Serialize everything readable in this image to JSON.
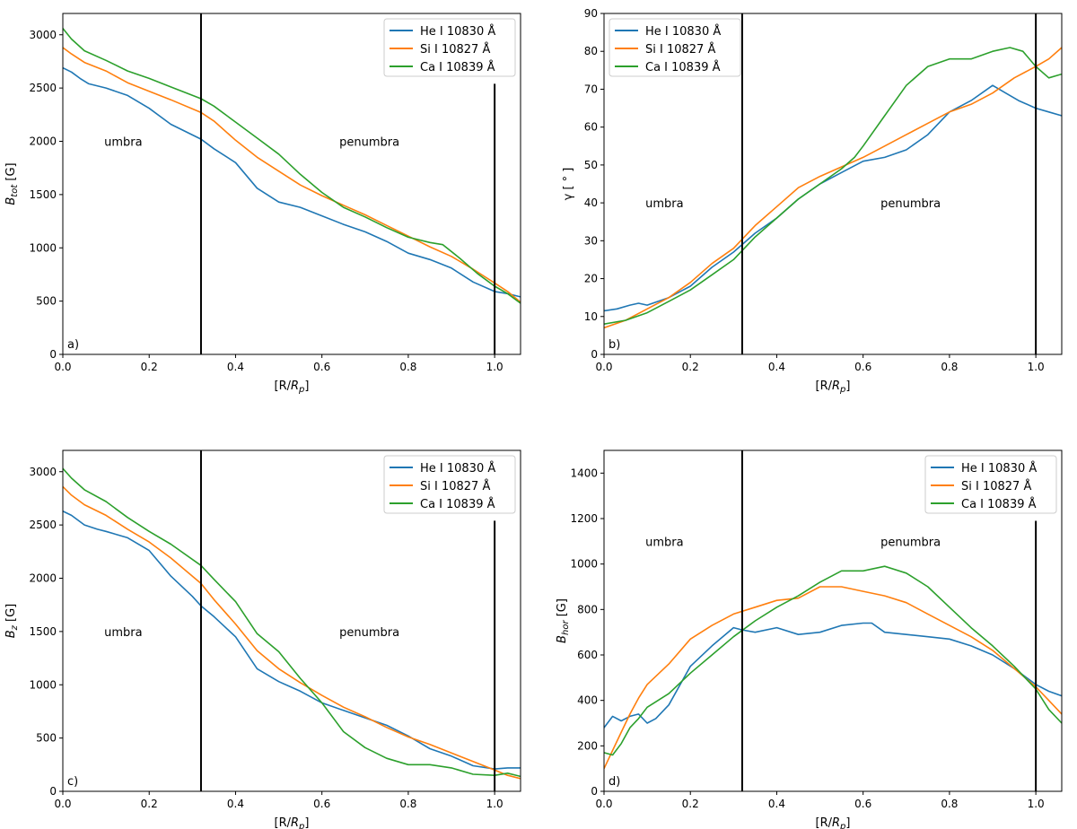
{
  "colors": {
    "He I 10830 Å": "#1f77b4",
    "Si I 10827 Å": "#ff7f0e",
    "Ca I 10839 Å": "#2ca02c",
    "axis": "#000000",
    "boundary": "#000000"
  },
  "chart_data": [
    {
      "type": "line",
      "panel_label": "a)",
      "xlabel": "[R/R_p]",
      "ylabel": "B_tot [G]",
      "xlim": [
        0,
        1.06
      ],
      "ylim": [
        0,
        3200
      ],
      "xticks": [
        0.0,
        0.2,
        0.4,
        0.6,
        0.8,
        1.0
      ],
      "xtick_labels": [
        "0.0",
        "0.2",
        "0.4",
        "0.6",
        "0.8",
        "1.0"
      ],
      "yticks": [
        0,
        500,
        1000,
        1500,
        2000,
        2500,
        3000
      ],
      "ytick_labels": [
        "0",
        "500",
        "1000",
        "1500",
        "2000",
        "2500",
        "3000"
      ],
      "legend": "top-right",
      "boundaries": [
        {
          "x": 0.32,
          "y_top": 3200
        },
        {
          "x": 1.0,
          "y_top": 2540
        }
      ],
      "annotations": [
        {
          "text": "umbra",
          "x": 0.14,
          "y": 2000
        },
        {
          "text": "penumbra",
          "x": 0.71,
          "y": 2000
        }
      ],
      "series": [
        {
          "name": "He I 10830 Å",
          "x": [
            0,
            0.02,
            0.04,
            0.06,
            0.1,
            0.15,
            0.2,
            0.25,
            0.32,
            0.35,
            0.4,
            0.45,
            0.5,
            0.55,
            0.6,
            0.65,
            0.7,
            0.75,
            0.8,
            0.85,
            0.9,
            0.95,
            1.0,
            1.03,
            1.06
          ],
          "y": [
            2690,
            2650,
            2590,
            2540,
            2500,
            2430,
            2310,
            2160,
            2020,
            1930,
            1800,
            1560,
            1430,
            1380,
            1300,
            1220,
            1150,
            1060,
            950,
            890,
            810,
            680,
            590,
            570,
            540
          ]
        },
        {
          "name": "Si I 10827 Å",
          "x": [
            0,
            0.02,
            0.05,
            0.1,
            0.15,
            0.2,
            0.25,
            0.32,
            0.35,
            0.4,
            0.45,
            0.5,
            0.55,
            0.6,
            0.65,
            0.7,
            0.75,
            0.8,
            0.85,
            0.9,
            0.95,
            1.0,
            1.03,
            1.06
          ],
          "y": [
            2880,
            2820,
            2740,
            2660,
            2550,
            2470,
            2390,
            2270,
            2190,
            2010,
            1850,
            1720,
            1590,
            1490,
            1400,
            1310,
            1210,
            1110,
            1010,
            920,
            800,
            670,
            590,
            490
          ]
        },
        {
          "name": "Ca I 10839 Å",
          "x": [
            0,
            0.02,
            0.05,
            0.1,
            0.15,
            0.2,
            0.25,
            0.32,
            0.35,
            0.4,
            0.45,
            0.5,
            0.55,
            0.6,
            0.65,
            0.7,
            0.75,
            0.8,
            0.85,
            0.88,
            0.92,
            0.96,
            1.0,
            1.03,
            1.06
          ],
          "y": [
            3060,
            2960,
            2850,
            2760,
            2660,
            2590,
            2510,
            2400,
            2330,
            2180,
            2030,
            1880,
            1690,
            1520,
            1380,
            1290,
            1190,
            1100,
            1050,
            1030,
            900,
            760,
            640,
            570,
            480
          ]
        }
      ]
    },
    {
      "type": "line",
      "panel_label": "b)",
      "xlabel": "[R/R_p]",
      "ylabel": "γ [ ° ]",
      "xlim": [
        0,
        1.06
      ],
      "ylim": [
        0,
        90
      ],
      "xticks": [
        0.0,
        0.2,
        0.4,
        0.6,
        0.8,
        1.0
      ],
      "xtick_labels": [
        "0.0",
        "0.2",
        "0.4",
        "0.6",
        "0.8",
        "1.0"
      ],
      "yticks": [
        0,
        10,
        20,
        30,
        40,
        50,
        60,
        70,
        80,
        90
      ],
      "ytick_labels": [
        "0",
        "10",
        "20",
        "30",
        "40",
        "50",
        "60",
        "70",
        "80",
        "90"
      ],
      "legend": "top-left",
      "boundaries": [
        {
          "x": 0.32,
          "y_top": 90
        },
        {
          "x": 1.0,
          "y_top": 90
        }
      ],
      "annotations": [
        {
          "text": "umbra",
          "x": 0.14,
          "y": 40
        },
        {
          "text": "penumbra",
          "x": 0.71,
          "y": 40
        }
      ],
      "series": [
        {
          "name": "He I 10830 Å",
          "x": [
            0,
            0.03,
            0.06,
            0.08,
            0.1,
            0.15,
            0.2,
            0.25,
            0.3,
            0.35,
            0.4,
            0.45,
            0.5,
            0.55,
            0.6,
            0.65,
            0.7,
            0.75,
            0.8,
            0.85,
            0.9,
            0.93,
            0.96,
            1.0,
            1.03,
            1.06
          ],
          "y": [
            11.5,
            12,
            13,
            13.5,
            13,
            15,
            18,
            23,
            27,
            32,
            36,
            41,
            45,
            48,
            51,
            52,
            54,
            58,
            64,
            67,
            71,
            69,
            67,
            65,
            64,
            63
          ]
        },
        {
          "name": "Si I 10827 Å",
          "x": [
            0,
            0.05,
            0.1,
            0.15,
            0.2,
            0.25,
            0.3,
            0.35,
            0.4,
            0.45,
            0.5,
            0.55,
            0.6,
            0.65,
            0.7,
            0.75,
            0.8,
            0.85,
            0.9,
            0.95,
            1.0,
            1.03,
            1.06
          ],
          "y": [
            7,
            9,
            12,
            15,
            19,
            24,
            28,
            34,
            39,
            44,
            47,
            49.5,
            52,
            55,
            58,
            61,
            64,
            66,
            69,
            73,
            76,
            78,
            81
          ]
        },
        {
          "name": "Ca I 10839 Å",
          "x": [
            0,
            0.05,
            0.1,
            0.15,
            0.2,
            0.25,
            0.3,
            0.35,
            0.4,
            0.45,
            0.5,
            0.55,
            0.58,
            0.6,
            0.65,
            0.7,
            0.75,
            0.8,
            0.85,
            0.9,
            0.94,
            0.97,
            1.0,
            1.03,
            1.06
          ],
          "y": [
            8,
            9,
            11,
            14,
            17,
            21,
            25,
            31,
            36,
            41,
            45,
            49,
            52,
            55,
            63,
            71,
            76,
            78,
            78,
            80,
            81,
            80,
            76,
            73,
            74
          ]
        }
      ]
    },
    {
      "type": "line",
      "panel_label": "c)",
      "xlabel": "[R/R_p]",
      "ylabel": "B_z [G]",
      "xlim": [
        0,
        1.06
      ],
      "ylim": [
        0,
        3200
      ],
      "xticks": [
        0.0,
        0.2,
        0.4,
        0.6,
        0.8,
        1.0
      ],
      "xtick_labels": [
        "0.0",
        "0.2",
        "0.4",
        "0.6",
        "0.8",
        "1.0"
      ],
      "yticks": [
        0,
        500,
        1000,
        1500,
        2000,
        2500,
        3000
      ],
      "ytick_labels": [
        "0",
        "500",
        "1000",
        "1500",
        "2000",
        "2500",
        "3000"
      ],
      "legend": "top-right",
      "boundaries": [
        {
          "x": 0.32,
          "y_top": 3200
        },
        {
          "x": 1.0,
          "y_top": 2540
        }
      ],
      "annotations": [
        {
          "text": "umbra",
          "x": 0.14,
          "y": 1500
        },
        {
          "text": "penumbra",
          "x": 0.71,
          "y": 1500
        }
      ],
      "series": [
        {
          "name": "He I 10830 Å",
          "x": [
            0,
            0.02,
            0.05,
            0.08,
            0.1,
            0.15,
            0.2,
            0.25,
            0.3,
            0.32,
            0.35,
            0.4,
            0.45,
            0.5,
            0.55,
            0.6,
            0.65,
            0.7,
            0.75,
            0.8,
            0.85,
            0.9,
            0.95,
            1.0,
            1.03,
            1.06
          ],
          "y": [
            2630,
            2590,
            2500,
            2460,
            2440,
            2380,
            2260,
            2020,
            1830,
            1740,
            1640,
            1450,
            1150,
            1030,
            940,
            830,
            760,
            690,
            620,
            520,
            400,
            330,
            240,
            210,
            220,
            220
          ]
        },
        {
          "name": "Si I 10827 Å",
          "x": [
            0,
            0.02,
            0.05,
            0.1,
            0.15,
            0.2,
            0.25,
            0.32,
            0.35,
            0.4,
            0.45,
            0.5,
            0.55,
            0.6,
            0.65,
            0.7,
            0.75,
            0.8,
            0.85,
            0.9,
            0.95,
            1.0,
            1.03,
            1.06
          ],
          "y": [
            2860,
            2780,
            2690,
            2590,
            2460,
            2340,
            2190,
            1950,
            1800,
            1570,
            1320,
            1150,
            1020,
            900,
            790,
            700,
            600,
            510,
            440,
            360,
            280,
            200,
            150,
            120
          ]
        },
        {
          "name": "Ca I 10839 Å",
          "x": [
            0,
            0.02,
            0.05,
            0.1,
            0.15,
            0.2,
            0.25,
            0.32,
            0.35,
            0.4,
            0.45,
            0.5,
            0.55,
            0.6,
            0.65,
            0.7,
            0.75,
            0.8,
            0.85,
            0.9,
            0.95,
            1.0,
            1.03,
            1.06
          ],
          "y": [
            3030,
            2940,
            2830,
            2720,
            2570,
            2440,
            2320,
            2120,
            1990,
            1780,
            1480,
            1310,
            1060,
            830,
            560,
            410,
            310,
            250,
            250,
            220,
            160,
            150,
            170,
            140
          ]
        }
      ]
    },
    {
      "type": "line",
      "panel_label": "d)",
      "xlabel": "[R/R_p]",
      "ylabel": "B_hor [G]",
      "xlim": [
        0,
        1.06
      ],
      "ylim": [
        0,
        1500
      ],
      "xticks": [
        0.0,
        0.2,
        0.4,
        0.6,
        0.8,
        1.0
      ],
      "xtick_labels": [
        "0.0",
        "0.2",
        "0.4",
        "0.6",
        "0.8",
        "1.0"
      ],
      "yticks": [
        0,
        200,
        400,
        600,
        800,
        1000,
        1200,
        1400
      ],
      "ytick_labels": [
        "0",
        "200",
        "400",
        "600",
        "800",
        "1000",
        "1200",
        "1400"
      ],
      "legend": "top-right",
      "boundaries": [
        {
          "x": 0.32,
          "y_top": 1500
        },
        {
          "x": 1.0,
          "y_top": 1190
        }
      ],
      "annotations": [
        {
          "text": "umbra",
          "x": 0.14,
          "y": 1100
        },
        {
          "text": "penumbra",
          "x": 0.71,
          "y": 1100
        }
      ],
      "series": [
        {
          "name": "He I 10830 Å",
          "x": [
            0,
            0.02,
            0.04,
            0.06,
            0.08,
            0.1,
            0.12,
            0.15,
            0.2,
            0.25,
            0.3,
            0.32,
            0.35,
            0.4,
            0.45,
            0.5,
            0.55,
            0.6,
            0.62,
            0.65,
            0.7,
            0.75,
            0.8,
            0.85,
            0.9,
            0.95,
            1.0,
            1.03,
            1.06
          ],
          "y": [
            280,
            330,
            310,
            330,
            340,
            300,
            320,
            380,
            550,
            640,
            720,
            710,
            700,
            720,
            690,
            700,
            730,
            740,
            740,
            700,
            690,
            680,
            670,
            640,
            600,
            540,
            470,
            440,
            420
          ]
        },
        {
          "name": "Si I 10827 Å",
          "x": [
            0,
            0.02,
            0.04,
            0.06,
            0.08,
            0.1,
            0.15,
            0.2,
            0.25,
            0.3,
            0.35,
            0.4,
            0.45,
            0.5,
            0.55,
            0.6,
            0.65,
            0.7,
            0.75,
            0.8,
            0.85,
            0.9,
            0.95,
            1.0,
            1.03,
            1.06
          ],
          "y": [
            100,
            180,
            260,
            340,
            410,
            470,
            560,
            670,
            730,
            780,
            810,
            840,
            850,
            900,
            900,
            880,
            860,
            830,
            780,
            730,
            680,
            620,
            540,
            460,
            400,
            340
          ]
        },
        {
          "name": "Ca I 10839 Å",
          "x": [
            0,
            0.02,
            0.04,
            0.06,
            0.08,
            0.1,
            0.15,
            0.2,
            0.25,
            0.3,
            0.35,
            0.4,
            0.45,
            0.5,
            0.55,
            0.6,
            0.65,
            0.7,
            0.75,
            0.8,
            0.85,
            0.9,
            0.95,
            1.0,
            1.03,
            1.06
          ],
          "y": [
            170,
            160,
            210,
            280,
            320,
            370,
            430,
            520,
            600,
            680,
            750,
            810,
            860,
            920,
            970,
            970,
            990,
            960,
            900,
            810,
            720,
            640,
            550,
            450,
            360,
            300
          ]
        }
      ]
    }
  ]
}
